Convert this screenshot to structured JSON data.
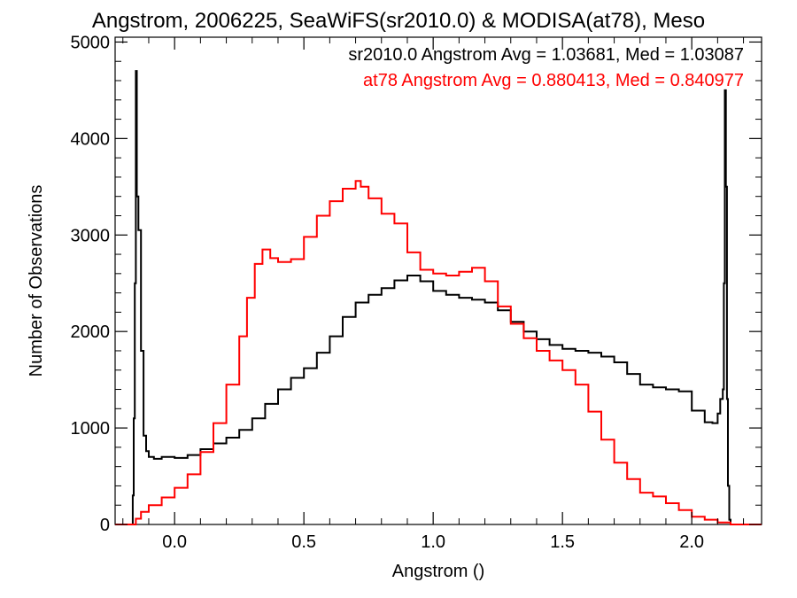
{
  "chart_data": {
    "type": "line",
    "title": "Angstrom, 2006225, SeaWiFS(sr2010.0) & MODISA(at78), Meso",
    "xlabel": "Angstrom ()",
    "ylabel": "Number of Observations",
    "xlim": [
      -0.23,
      2.27
    ],
    "ylim": [
      0,
      5050
    ],
    "x_ticks": [
      0.0,
      0.5,
      1.0,
      1.5,
      2.0
    ],
    "x_tick_labels": [
      "0.0",
      "0.5",
      "1.0",
      "1.5",
      "2.0"
    ],
    "y_ticks": [
      0,
      1000,
      2000,
      3000,
      4000,
      5000
    ],
    "y_tick_labels": [
      "0",
      "1000",
      "2000",
      "3000",
      "4000",
      "5000"
    ],
    "grid": false,
    "legend_placement": "top-right",
    "series": [
      {
        "name": "sr2010.0",
        "legend_text": "sr2010.0 Angstrom Avg = 1.03681, Med = 1.03087",
        "color": "#000000",
        "x": [
          -0.23,
          -0.166,
          -0.162,
          -0.158,
          -0.154,
          -0.15,
          -0.146,
          -0.14,
          -0.13,
          -0.12,
          -0.11,
          -0.1,
          -0.08,
          -0.05,
          0.0,
          0.05,
          0.1,
          0.15,
          0.2,
          0.25,
          0.3,
          0.35,
          0.4,
          0.45,
          0.5,
          0.55,
          0.6,
          0.65,
          0.7,
          0.75,
          0.8,
          0.85,
          0.9,
          0.95,
          1.0,
          1.05,
          1.1,
          1.15,
          1.2,
          1.25,
          1.3,
          1.35,
          1.4,
          1.45,
          1.5,
          1.55,
          1.6,
          1.65,
          1.7,
          1.75,
          1.8,
          1.85,
          1.9,
          1.95,
          2.0,
          2.05,
          2.08,
          2.1,
          2.11,
          2.12,
          2.124,
          2.128,
          2.132,
          2.136,
          2.14,
          2.145,
          2.15,
          2.27
        ],
        "values": [
          0,
          0,
          300,
          1100,
          2500,
          4700,
          3400,
          3050,
          1800,
          920,
          760,
          700,
          680,
          700,
          690,
          720,
          780,
          840,
          900,
          980,
          1100,
          1250,
          1400,
          1520,
          1620,
          1780,
          1950,
          2150,
          2300,
          2380,
          2450,
          2530,
          2580,
          2520,
          2420,
          2380,
          2350,
          2330,
          2300,
          2220,
          2100,
          2000,
          1920,
          1860,
          1820,
          1800,
          1780,
          1740,
          1680,
          1560,
          1450,
          1420,
          1400,
          1380,
          1180,
          1060,
          1050,
          1150,
          1300,
          1400,
          2500,
          4500,
          3500,
          1300,
          400,
          50,
          0,
          0
        ]
      },
      {
        "name": "at78",
        "legend_text": "at78 Angstrom Avg = 0.880413, Med = 0.840977",
        "color": "#ff0000",
        "x": [
          -0.23,
          -0.17,
          -0.15,
          -0.13,
          -0.1,
          -0.05,
          0.0,
          0.05,
          0.1,
          0.15,
          0.2,
          0.25,
          0.28,
          0.31,
          0.34,
          0.37,
          0.4,
          0.45,
          0.5,
          0.55,
          0.6,
          0.65,
          0.7,
          0.72,
          0.75,
          0.8,
          0.85,
          0.9,
          0.95,
          1.0,
          1.05,
          1.1,
          1.15,
          1.2,
          1.25,
          1.3,
          1.35,
          1.4,
          1.45,
          1.5,
          1.55,
          1.6,
          1.65,
          1.7,
          1.75,
          1.8,
          1.85,
          1.9,
          1.95,
          2.0,
          2.05,
          2.1,
          2.13,
          2.15,
          2.27
        ],
        "values": [
          0,
          0,
          60,
          130,
          200,
          280,
          380,
          520,
          750,
          1050,
          1450,
          1950,
          2350,
          2700,
          2850,
          2760,
          2720,
          2750,
          2980,
          3200,
          3350,
          3480,
          3560,
          3500,
          3380,
          3220,
          3120,
          2820,
          2640,
          2600,
          2580,
          2620,
          2660,
          2520,
          2260,
          2080,
          1930,
          1800,
          1700,
          1600,
          1450,
          1170,
          880,
          640,
          470,
          330,
          290,
          220,
          150,
          80,
          50,
          20,
          20,
          0,
          0
        ]
      }
    ]
  }
}
